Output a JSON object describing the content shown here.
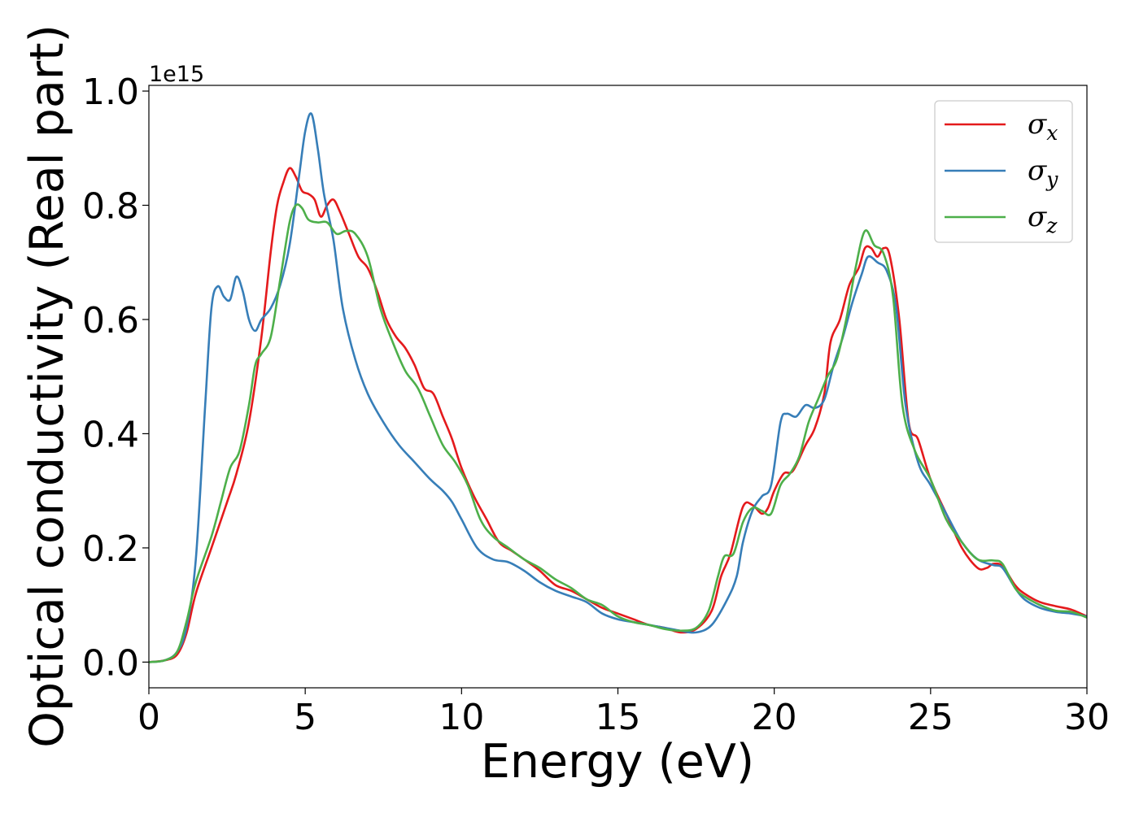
{
  "chart_data": {
    "type": "line",
    "xlabel": "Energy (eV)",
    "ylabel": "Optical conductivity (Real part)",
    "y_offset_label": "1e15",
    "xlim": [
      0,
      30
    ],
    "ylim": [
      -0.045,
      1.01
    ],
    "x_ticks": [
      0,
      5,
      10,
      15,
      20,
      25,
      30
    ],
    "x_tick_labels": [
      "0",
      "5",
      "10",
      "15",
      "20",
      "25",
      "30"
    ],
    "y_ticks": [
      0.0,
      0.2,
      0.4,
      0.6,
      0.8,
      1.0
    ],
    "y_tick_labels": [
      "0.0",
      "0.2",
      "0.4",
      "0.6",
      "0.8",
      "1.0"
    ],
    "grid": false,
    "legend_position": "top-right",
    "series": [
      {
        "name": "σx",
        "name_base": "σ",
        "name_sub": "x",
        "color": "#e41a1c",
        "points": [
          [
            0,
            0
          ],
          [
            0.5,
            0.003
          ],
          [
            0.9,
            0.013
          ],
          [
            1.2,
            0.05
          ],
          [
            1.5,
            0.12
          ],
          [
            2.0,
            0.2
          ],
          [
            2.5,
            0.28
          ],
          [
            2.8,
            0.33
          ],
          [
            3.2,
            0.42
          ],
          [
            3.6,
            0.57
          ],
          [
            3.9,
            0.72
          ],
          [
            4.1,
            0.8
          ],
          [
            4.3,
            0.84
          ],
          [
            4.5,
            0.865
          ],
          [
            4.7,
            0.85
          ],
          [
            4.9,
            0.825
          ],
          [
            5.1,
            0.82
          ],
          [
            5.3,
            0.81
          ],
          [
            5.5,
            0.78
          ],
          [
            5.7,
            0.8
          ],
          [
            5.9,
            0.81
          ],
          [
            6.1,
            0.79
          ],
          [
            6.4,
            0.75
          ],
          [
            6.7,
            0.71
          ],
          [
            7.0,
            0.69
          ],
          [
            7.3,
            0.65
          ],
          [
            7.6,
            0.6
          ],
          [
            7.9,
            0.57
          ],
          [
            8.2,
            0.55
          ],
          [
            8.5,
            0.52
          ],
          [
            8.8,
            0.48
          ],
          [
            9.1,
            0.47
          ],
          [
            9.4,
            0.43
          ],
          [
            9.7,
            0.39
          ],
          [
            10.0,
            0.34
          ],
          [
            10.4,
            0.29
          ],
          [
            10.8,
            0.25
          ],
          [
            11.2,
            0.21
          ],
          [
            11.6,
            0.195
          ],
          [
            12.0,
            0.18
          ],
          [
            12.5,
            0.16
          ],
          [
            13.0,
            0.135
          ],
          [
            13.5,
            0.125
          ],
          [
            14.0,
            0.11
          ],
          [
            14.5,
            0.095
          ],
          [
            15.0,
            0.085
          ],
          [
            15.5,
            0.075
          ],
          [
            16.0,
            0.065
          ],
          [
            16.5,
            0.06
          ],
          [
            17.0,
            0.052
          ],
          [
            17.5,
            0.058
          ],
          [
            18.0,
            0.09
          ],
          [
            18.3,
            0.15
          ],
          [
            18.6,
            0.19
          ],
          [
            19.0,
            0.272
          ],
          [
            19.3,
            0.275
          ],
          [
            19.6,
            0.26
          ],
          [
            19.8,
            0.27
          ],
          [
            20.0,
            0.3
          ],
          [
            20.3,
            0.33
          ],
          [
            20.6,
            0.335
          ],
          [
            21.0,
            0.38
          ],
          [
            21.3,
            0.41
          ],
          [
            21.6,
            0.47
          ],
          [
            21.8,
            0.56
          ],
          [
            22.1,
            0.6
          ],
          [
            22.4,
            0.66
          ],
          [
            22.7,
            0.69
          ],
          [
            22.9,
            0.725
          ],
          [
            23.1,
            0.725
          ],
          [
            23.3,
            0.71
          ],
          [
            23.5,
            0.725
          ],
          [
            23.7,
            0.71
          ],
          [
            24.0,
            0.6
          ],
          [
            24.3,
            0.42
          ],
          [
            24.6,
            0.39
          ],
          [
            25.0,
            0.32
          ],
          [
            25.5,
            0.26
          ],
          [
            26.0,
            0.2
          ],
          [
            26.5,
            0.165
          ],
          [
            26.8,
            0.165
          ],
          [
            27.0,
            0.172
          ],
          [
            27.3,
            0.168
          ],
          [
            27.7,
            0.135
          ],
          [
            28.0,
            0.12
          ],
          [
            28.5,
            0.105
          ],
          [
            29.0,
            0.098
          ],
          [
            29.5,
            0.092
          ],
          [
            30.0,
            0.08
          ]
        ]
      },
      {
        "name": "σy",
        "name_base": "σ",
        "name_sub": "y",
        "color": "#377eb8",
        "points": [
          [
            0,
            0
          ],
          [
            0.5,
            0.003
          ],
          [
            0.9,
            0.018
          ],
          [
            1.2,
            0.06
          ],
          [
            1.5,
            0.18
          ],
          [
            1.8,
            0.45
          ],
          [
            2.0,
            0.62
          ],
          [
            2.2,
            0.658
          ],
          [
            2.4,
            0.64
          ],
          [
            2.6,
            0.635
          ],
          [
            2.8,
            0.675
          ],
          [
            3.0,
            0.65
          ],
          [
            3.2,
            0.6
          ],
          [
            3.4,
            0.58
          ],
          [
            3.6,
            0.6
          ],
          [
            3.9,
            0.62
          ],
          [
            4.2,
            0.66
          ],
          [
            4.5,
            0.73
          ],
          [
            4.8,
            0.85
          ],
          [
            5.0,
            0.93
          ],
          [
            5.2,
            0.96
          ],
          [
            5.4,
            0.9
          ],
          [
            5.6,
            0.82
          ],
          [
            5.9,
            0.74
          ],
          [
            6.2,
            0.62
          ],
          [
            6.6,
            0.53
          ],
          [
            7.0,
            0.47
          ],
          [
            7.5,
            0.42
          ],
          [
            8.0,
            0.38
          ],
          [
            8.5,
            0.35
          ],
          [
            9.0,
            0.32
          ],
          [
            9.4,
            0.3
          ],
          [
            9.7,
            0.28
          ],
          [
            10.0,
            0.25
          ],
          [
            10.5,
            0.2
          ],
          [
            11.0,
            0.18
          ],
          [
            11.5,
            0.175
          ],
          [
            12.0,
            0.16
          ],
          [
            12.5,
            0.14
          ],
          [
            13.0,
            0.125
          ],
          [
            13.5,
            0.115
          ],
          [
            14.0,
            0.105
          ],
          [
            14.5,
            0.085
          ],
          [
            15.0,
            0.075
          ],
          [
            15.5,
            0.07
          ],
          [
            16.0,
            0.065
          ],
          [
            16.5,
            0.06
          ],
          [
            17.0,
            0.055
          ],
          [
            17.5,
            0.052
          ],
          [
            18.0,
            0.065
          ],
          [
            18.5,
            0.11
          ],
          [
            18.8,
            0.15
          ],
          [
            19.0,
            0.21
          ],
          [
            19.3,
            0.265
          ],
          [
            19.6,
            0.29
          ],
          [
            19.9,
            0.31
          ],
          [
            20.2,
            0.42
          ],
          [
            20.4,
            0.435
          ],
          [
            20.7,
            0.43
          ],
          [
            21.0,
            0.45
          ],
          [
            21.3,
            0.445
          ],
          [
            21.6,
            0.46
          ],
          [
            21.9,
            0.52
          ],
          [
            22.2,
            0.57
          ],
          [
            22.5,
            0.63
          ],
          [
            22.8,
            0.68
          ],
          [
            23.0,
            0.71
          ],
          [
            23.3,
            0.7
          ],
          [
            23.6,
            0.685
          ],
          [
            23.9,
            0.62
          ],
          [
            24.2,
            0.45
          ],
          [
            24.6,
            0.35
          ],
          [
            25.0,
            0.31
          ],
          [
            25.5,
            0.26
          ],
          [
            26.0,
            0.21
          ],
          [
            26.5,
            0.18
          ],
          [
            27.0,
            0.17
          ],
          [
            27.3,
            0.165
          ],
          [
            27.7,
            0.13
          ],
          [
            28.0,
            0.11
          ],
          [
            28.5,
            0.095
          ],
          [
            29.0,
            0.088
          ],
          [
            29.5,
            0.085
          ],
          [
            30.0,
            0.08
          ]
        ]
      },
      {
        "name": "σz",
        "name_base": "σ",
        "name_sub": "z",
        "color": "#4daf4a",
        "points": [
          [
            0,
            0
          ],
          [
            0.5,
            0.003
          ],
          [
            0.9,
            0.018
          ],
          [
            1.2,
            0.07
          ],
          [
            1.5,
            0.14
          ],
          [
            2.0,
            0.22
          ],
          [
            2.3,
            0.28
          ],
          [
            2.6,
            0.34
          ],
          [
            2.9,
            0.37
          ],
          [
            3.2,
            0.45
          ],
          [
            3.4,
            0.52
          ],
          [
            3.6,
            0.54
          ],
          [
            3.9,
            0.57
          ],
          [
            4.2,
            0.67
          ],
          [
            4.5,
            0.77
          ],
          [
            4.7,
            0.8
          ],
          [
            4.9,
            0.795
          ],
          [
            5.1,
            0.775
          ],
          [
            5.4,
            0.77
          ],
          [
            5.7,
            0.77
          ],
          [
            6.0,
            0.75
          ],
          [
            6.3,
            0.755
          ],
          [
            6.6,
            0.75
          ],
          [
            7.0,
            0.71
          ],
          [
            7.4,
            0.62
          ],
          [
            7.8,
            0.56
          ],
          [
            8.2,
            0.51
          ],
          [
            8.6,
            0.48
          ],
          [
            9.0,
            0.43
          ],
          [
            9.4,
            0.38
          ],
          [
            9.8,
            0.35
          ],
          [
            10.2,
            0.31
          ],
          [
            10.6,
            0.25
          ],
          [
            11.0,
            0.22
          ],
          [
            11.5,
            0.2
          ],
          [
            12.0,
            0.18
          ],
          [
            12.5,
            0.165
          ],
          [
            13.0,
            0.145
          ],
          [
            13.5,
            0.13
          ],
          [
            14.0,
            0.11
          ],
          [
            14.5,
            0.1
          ],
          [
            15.0,
            0.08
          ],
          [
            15.5,
            0.07
          ],
          [
            16.0,
            0.065
          ],
          [
            16.5,
            0.058
          ],
          [
            17.0,
            0.055
          ],
          [
            17.5,
            0.06
          ],
          [
            17.9,
            0.09
          ],
          [
            18.2,
            0.15
          ],
          [
            18.4,
            0.185
          ],
          [
            18.7,
            0.19
          ],
          [
            19.0,
            0.245
          ],
          [
            19.3,
            0.27
          ],
          [
            19.6,
            0.265
          ],
          [
            19.9,
            0.26
          ],
          [
            20.2,
            0.31
          ],
          [
            20.5,
            0.33
          ],
          [
            20.8,
            0.36
          ],
          [
            21.1,
            0.42
          ],
          [
            21.4,
            0.46
          ],
          [
            21.7,
            0.5
          ],
          [
            22.0,
            0.53
          ],
          [
            22.3,
            0.6
          ],
          [
            22.6,
            0.69
          ],
          [
            22.9,
            0.755
          ],
          [
            23.2,
            0.73
          ],
          [
            23.5,
            0.715
          ],
          [
            23.8,
            0.64
          ],
          [
            24.1,
            0.45
          ],
          [
            24.5,
            0.37
          ],
          [
            25.0,
            0.32
          ],
          [
            25.5,
            0.25
          ],
          [
            26.0,
            0.21
          ],
          [
            26.5,
            0.18
          ],
          [
            27.0,
            0.178
          ],
          [
            27.3,
            0.172
          ],
          [
            27.7,
            0.13
          ],
          [
            28.0,
            0.115
          ],
          [
            28.5,
            0.1
          ],
          [
            29.0,
            0.09
          ],
          [
            29.5,
            0.088
          ],
          [
            30.0,
            0.078
          ]
        ]
      }
    ]
  }
}
